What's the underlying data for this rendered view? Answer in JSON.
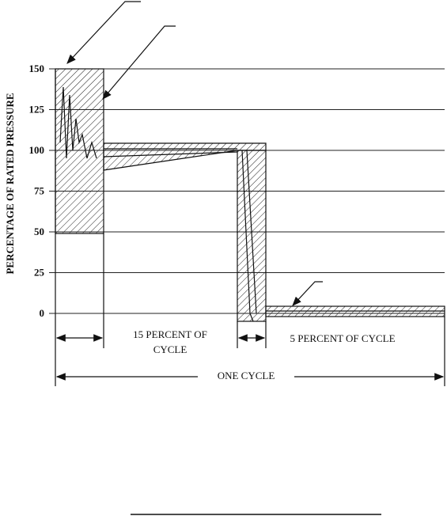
{
  "y_axis": {
    "label": "PERCENTAGE OF RATED PRESSURE",
    "ticks": [
      150,
      125,
      100,
      75,
      50,
      25,
      0
    ]
  },
  "dimensions": {
    "first_interval": [
      "15 PERCENT OF",
      "CYCLE"
    ],
    "second_interval": "5 PERCENT OF CYCLE",
    "total": "ONE CYCLE"
  }
}
